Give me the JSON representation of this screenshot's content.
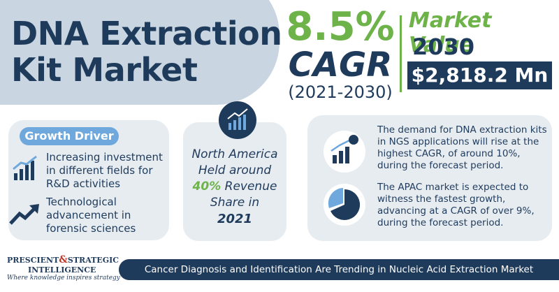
{
  "header": {
    "title": [
      "DNA Extraction",
      "Kit Market"
    ]
  },
  "cagr": {
    "value": "8.5%",
    "label": "CAGR",
    "period": "(2021-2030)"
  },
  "market_value": {
    "label": "Market Value",
    "year": "2030",
    "amount": "$2,818.2 Mn"
  },
  "growth_driver": {
    "title": "Growth Driver",
    "items": [
      "Increasing investment in different fields for R&D activities",
      "Technological advancement in forensic sciences"
    ]
  },
  "region": {
    "lines": [
      "North America",
      "Held around"
    ],
    "share": "40%",
    "share_suffix": "Revenue",
    "lines_after": [
      "Share in"
    ],
    "year": "2021"
  },
  "insights": [
    "The demand for DNA extraction kits in NGS applications will rise at the highest CAGR, of around 10%, during the forecast period.",
    "The APAC market is expected to witness the fastest growth, advancing at a CAGR of over 9%, during the forecast period."
  ],
  "footer": {
    "logo": {
      "line1a": "PRESCIENT",
      "amp": "&",
      "line1b": "STRATEGIC",
      "line2": "INTELLIGENCE",
      "tagline": "Where knowledge inspires strategy"
    },
    "banner": "Cancer Diagnosis and Identification Are Trending in Nucleic Acid Extraction Market"
  }
}
